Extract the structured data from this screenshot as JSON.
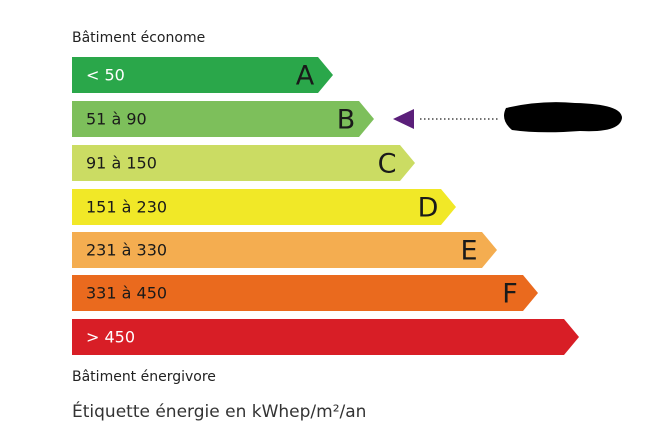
{
  "header": {
    "title": "Bâtiment économe"
  },
  "classes": [
    {
      "range": "< 50",
      "letter": "A",
      "color": "#2aa74a",
      "text_color": "#ffffff"
    },
    {
      "range": "51 à 90",
      "letter": "B",
      "color": "#7dbf5b",
      "text_color": "#1a1a1a"
    },
    {
      "range": "91 à 150",
      "letter": "C",
      "color": "#cbdc63",
      "text_color": "#1a1a1a"
    },
    {
      "range": "151 à 230",
      "letter": "D",
      "color": "#f1e827",
      "text_color": "#1a1a1a"
    },
    {
      "range": "231 à 330",
      "letter": "E",
      "color": "#f4ad50",
      "text_color": "#1a1a1a"
    },
    {
      "range": "331 à 450",
      "letter": "F",
      "color": "#ea6a1e",
      "text_color": "#1a1a1a"
    },
    {
      "range": "> 450",
      "color": "#d81e26",
      "text_color": "#ffffff"
    }
  ],
  "footer": {
    "label": "Bâtiment énergivore",
    "caption": "Étiquette énergie en kWhep/m²/an"
  }
}
